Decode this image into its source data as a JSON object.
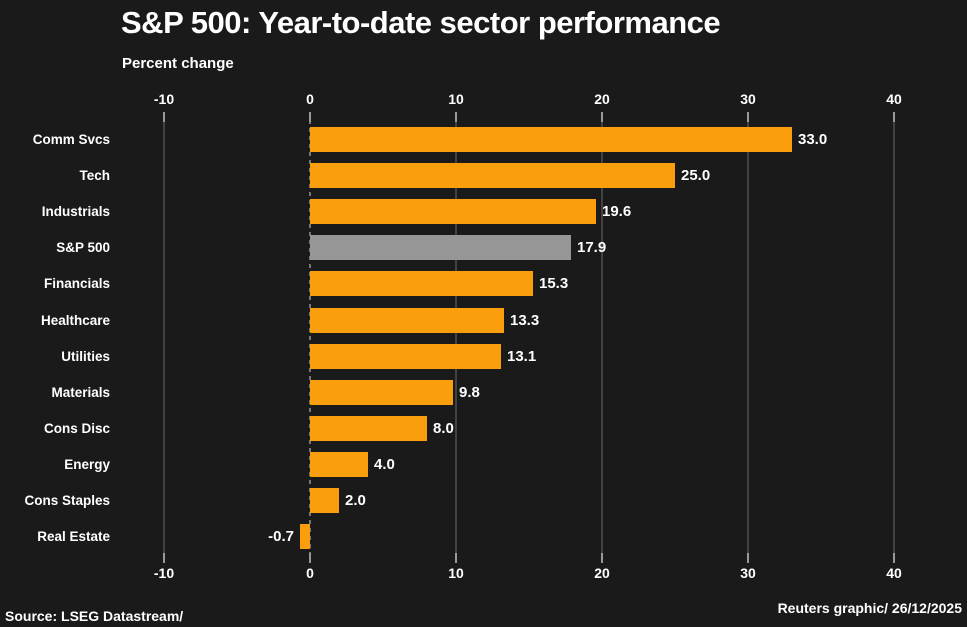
{
  "footer": {
    "source": "Source: LSEG Datastream/",
    "credit": "Reuters graphic/ 26/12/2025"
  },
  "colors": {
    "background": "#1A1A1A",
    "bar": "#FA9E0D",
    "highlight_bar": "#969696",
    "text": "#FFFFFF",
    "gridline": "#424242",
    "zero_line": "#777777",
    "tick": "#999999"
  },
  "chart_data": {
    "type": "bar",
    "orientation": "horizontal",
    "title": "S&P 500: Year-to-date sector performance",
    "xlabel": "Percent change",
    "categories": [
      "Comm Svcs",
      "Tech",
      "Industrials",
      "S&P 500",
      "Financials",
      "Healthcare",
      "Utilities",
      "Materials",
      "Cons Disc",
      "Energy",
      "Cons Staples",
      "Real Estate"
    ],
    "values": [
      33.0,
      25.0,
      19.6,
      17.9,
      15.3,
      13.3,
      13.1,
      9.8,
      8.0,
      4.0,
      2.0,
      -0.7
    ],
    "value_labels": [
      "33.0",
      "25.0",
      "19.6",
      "17.9",
      "15.3",
      "13.3",
      "13.1",
      "9.8",
      "8.0",
      "4.0",
      "2.0",
      "-0.7"
    ],
    "highlight_index": 3,
    "highlight_category": "S&P 500",
    "xlim": [
      -10,
      40
    ],
    "xticks": [
      -10,
      0,
      10,
      20,
      30,
      40
    ],
    "grid": true,
    "tick_label_rows": "top and bottom",
    "legend": "none"
  }
}
